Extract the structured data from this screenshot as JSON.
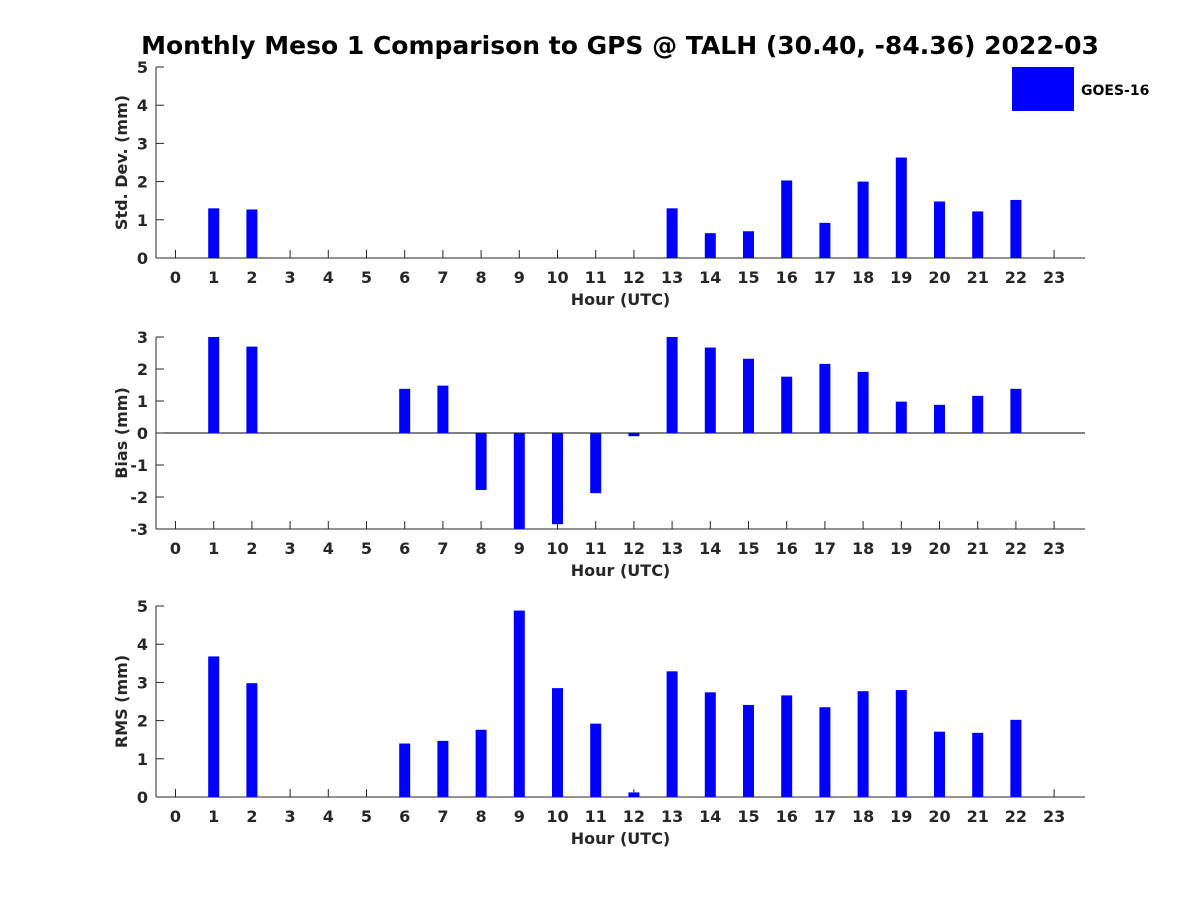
{
  "title": "Monthly Meso 1 Comparison to GPS @ TALH (30.40, -84.36) 2022-03",
  "legend": {
    "label": "GOES-16",
    "color": "#0000ff",
    "placement": "top-right"
  },
  "chart_data": [
    {
      "type": "bar",
      "xlabel": "Hour (UTC)",
      "ylabel": "Std. Dev. (mm)",
      "categories": [
        "0",
        "1",
        "2",
        "3",
        "4",
        "5",
        "6",
        "7",
        "8",
        "9",
        "10",
        "11",
        "12",
        "13",
        "14",
        "15",
        "16",
        "17",
        "18",
        "19",
        "20",
        "21",
        "22",
        "23"
      ],
      "series": [
        {
          "name": "GOES-16",
          "color": "#0000ff",
          "values": [
            null,
            1.3,
            1.27,
            null,
            null,
            null,
            null,
            null,
            null,
            null,
            null,
            null,
            null,
            1.3,
            0.65,
            0.7,
            2.03,
            0.92,
            2.0,
            2.63,
            1.48,
            1.22,
            1.52,
            null
          ]
        }
      ],
      "ylim": [
        0,
        5
      ],
      "yticks": [
        "0",
        "1",
        "2",
        "3",
        "4",
        "5"
      ],
      "zero_line": false,
      "grid": false
    },
    {
      "type": "bar",
      "xlabel": "Hour (UTC)",
      "ylabel": "Bias (mm)",
      "categories": [
        "0",
        "1",
        "2",
        "3",
        "4",
        "5",
        "6",
        "7",
        "8",
        "9",
        "10",
        "11",
        "12",
        "13",
        "14",
        "15",
        "16",
        "17",
        "18",
        "19",
        "20",
        "21",
        "22",
        "23"
      ],
      "series": [
        {
          "name": "GOES-16",
          "color": "#0000ff",
          "values": [
            null,
            3.0,
            2.7,
            null,
            null,
            null,
            1.38,
            1.48,
            -1.78,
            -3.0,
            -2.85,
            -1.88,
            -0.1,
            3.0,
            2.67,
            2.32,
            1.76,
            2.16,
            1.91,
            0.98,
            0.88,
            1.16,
            1.38,
            null
          ]
        }
      ],
      "ylim": [
        -3,
        3
      ],
      "yticks": [
        "-3",
        "-2",
        "-1",
        "0",
        "1",
        "2",
        "3"
      ],
      "zero_line": true,
      "grid": false
    },
    {
      "type": "bar",
      "xlabel": "Hour (UTC)",
      "ylabel": "RMS (mm)",
      "categories": [
        "0",
        "1",
        "2",
        "3",
        "4",
        "5",
        "6",
        "7",
        "8",
        "9",
        "10",
        "11",
        "12",
        "13",
        "14",
        "15",
        "16",
        "17",
        "18",
        "19",
        "20",
        "21",
        "22",
        "23"
      ],
      "series": [
        {
          "name": "GOES-16",
          "color": "#0000ff",
          "values": [
            null,
            3.68,
            2.98,
            null,
            null,
            null,
            1.4,
            1.47,
            1.76,
            4.88,
            2.85,
            1.92,
            0.12,
            3.29,
            2.74,
            2.41,
            2.66,
            2.35,
            2.77,
            2.8,
            1.71,
            1.68,
            2.02,
            null
          ]
        }
      ],
      "ylim": [
        0,
        5
      ],
      "yticks": [
        "0",
        "1",
        "2",
        "3",
        "4",
        "5"
      ],
      "zero_line": false,
      "grid": false
    }
  ]
}
